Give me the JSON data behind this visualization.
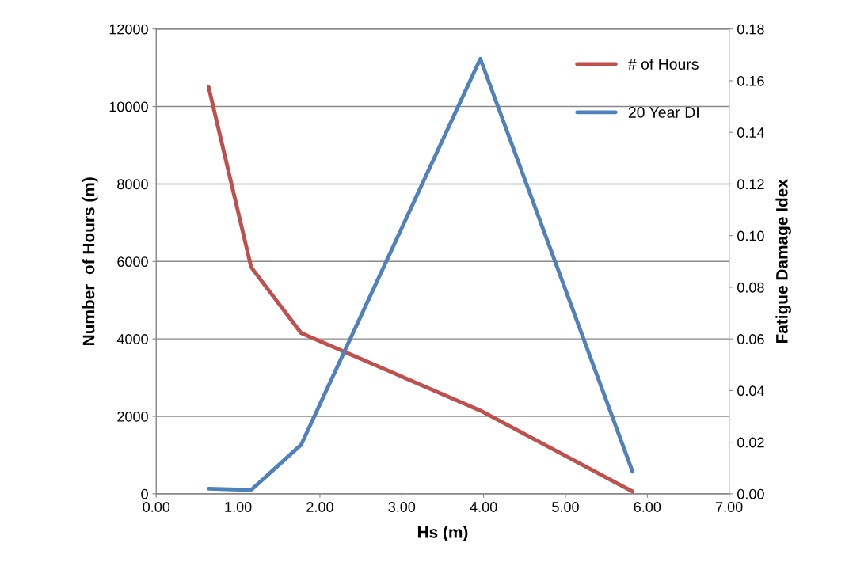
{
  "chart_data": {
    "type": "line",
    "xlabel": "Hs (m)",
    "ylabel": "Number  of Hours (m)",
    "y2label": "Fatigue Damage Idex",
    "x": [
      0.64,
      1.16,
      1.77,
      3.96,
      5.82
    ],
    "series": [
      {
        "name": "# of Hours",
        "color": "#c0504d",
        "values": [
          10500,
          5850,
          4150,
          2150,
          60
        ]
      },
      {
        "name": "20 Year DI",
        "color": "#4f81bd",
        "axis": "y2",
        "values": [
          0.002,
          0.0015,
          0.019,
          0.1685,
          0.0086
        ]
      }
    ],
    "xlim": [
      0,
      7
    ],
    "xticks": [
      {
        "value": 0,
        "label": "0.00"
      },
      {
        "value": 1,
        "label": "1.00"
      },
      {
        "value": 2,
        "label": "2.00"
      },
      {
        "value": 3,
        "label": "3.00"
      },
      {
        "value": 4,
        "label": "4.00"
      },
      {
        "value": 5,
        "label": "5.00"
      },
      {
        "value": 6,
        "label": "6.00"
      },
      {
        "value": 7,
        "label": "7.00"
      }
    ],
    "ylim": [
      0,
      12000
    ],
    "yticks": [
      0,
      2000,
      4000,
      6000,
      8000,
      10000,
      12000
    ],
    "y2lim": [
      0,
      0.18
    ],
    "y2ticks": [
      {
        "value": 0,
        "label": "0.00"
      },
      {
        "value": 0.02,
        "label": "0.02"
      },
      {
        "value": 0.04,
        "label": "0.04"
      },
      {
        "value": 0.06,
        "label": "0.06"
      },
      {
        "value": 0.08,
        "label": "0.08"
      },
      {
        "value": 0.1,
        "label": "0.10"
      },
      {
        "value": 0.12,
        "label": "0.12"
      },
      {
        "value": 0.14,
        "label": "0.14"
      },
      {
        "value": 0.16,
        "label": "0.16"
      },
      {
        "value": 0.18,
        "label": "0.18"
      }
    ],
    "grid": "y",
    "legend": "top right",
    "marker": "none",
    "line_style": "solid"
  }
}
